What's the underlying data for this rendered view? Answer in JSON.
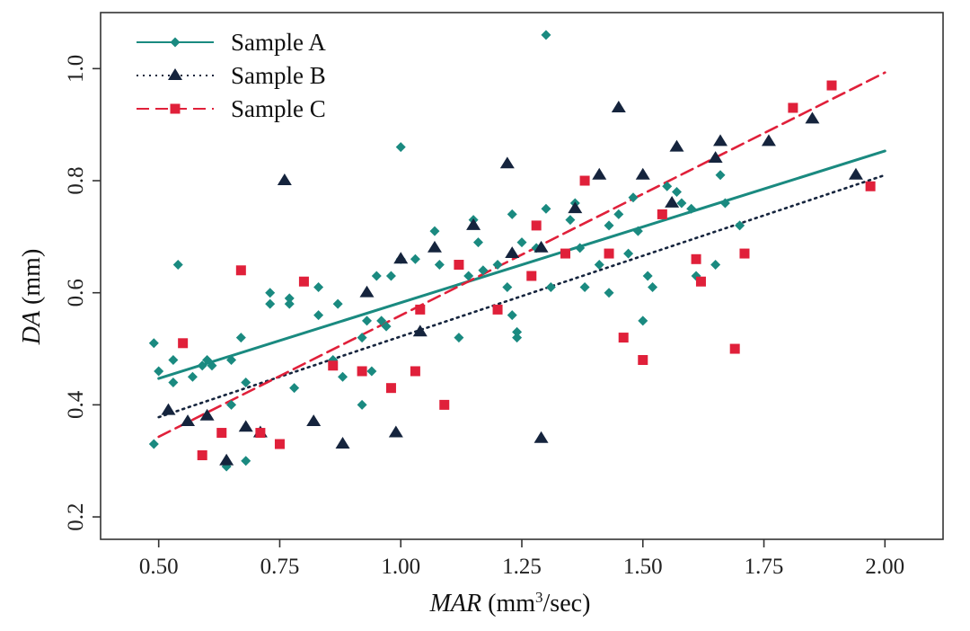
{
  "chart_data": {
    "type": "scatter",
    "xlabel": {
      "italic": "MAR",
      "rest": " (mm",
      "sup": "3",
      "tail": "/sec)"
    },
    "ylabel": {
      "italic": "DA",
      "rest": " (mm)"
    },
    "xlim": [
      0.38,
      2.12
    ],
    "ylim": [
      0.16,
      1.1
    ],
    "xticks": [
      0.5,
      0.75,
      1.0,
      1.25,
      1.5,
      1.75,
      2.0
    ],
    "xtick_labels": [
      "0.50",
      "0.75",
      "1.00",
      "1.25",
      "1.50",
      "1.75",
      "2.00"
    ],
    "yticks": [
      0.2,
      0.4,
      0.6,
      0.8,
      1.0
    ],
    "ytick_labels": [
      "0.2",
      "0.4",
      "0.6",
      "0.8",
      "1.0"
    ],
    "legend_position": "top-left",
    "grid": false,
    "series": [
      {
        "name": "Sample A",
        "color": "#1a8a80",
        "marker": "diamond",
        "line_style": "solid",
        "trend": [
          [
            0.5,
            0.447
          ],
          [
            2.0,
            0.853
          ]
        ],
        "points": [
          [
            0.49,
            0.51
          ],
          [
            0.5,
            0.46
          ],
          [
            0.49,
            0.33
          ],
          [
            0.53,
            0.48
          ],
          [
            0.53,
            0.44
          ],
          [
            0.54,
            0.65
          ],
          [
            0.57,
            0.45
          ],
          [
            0.59,
            0.47
          ],
          [
            0.6,
            0.48
          ],
          [
            0.61,
            0.47
          ],
          [
            0.64,
            0.29
          ],
          [
            0.65,
            0.4
          ],
          [
            0.65,
            0.48
          ],
          [
            0.67,
            0.52
          ],
          [
            0.68,
            0.44
          ],
          [
            0.68,
            0.3
          ],
          [
            0.73,
            0.6
          ],
          [
            0.73,
            0.58
          ],
          [
            0.77,
            0.59
          ],
          [
            0.77,
            0.58
          ],
          [
            0.78,
            0.43
          ],
          [
            0.83,
            0.61
          ],
          [
            0.83,
            0.56
          ],
          [
            0.86,
            0.48
          ],
          [
            0.87,
            0.58
          ],
          [
            0.88,
            0.45
          ],
          [
            0.92,
            0.52
          ],
          [
            0.92,
            0.4
          ],
          [
            0.93,
            0.55
          ],
          [
            0.94,
            0.46
          ],
          [
            0.95,
            0.63
          ],
          [
            0.96,
            0.55
          ],
          [
            0.97,
            0.54
          ],
          [
            0.98,
            0.63
          ],
          [
            1.0,
            0.66
          ],
          [
            1.0,
            0.86
          ],
          [
            1.03,
            0.66
          ],
          [
            1.07,
            0.71
          ],
          [
            1.08,
            0.65
          ],
          [
            1.12,
            0.65
          ],
          [
            1.12,
            0.52
          ],
          [
            1.14,
            0.63
          ],
          [
            1.15,
            0.73
          ],
          [
            1.16,
            0.69
          ],
          [
            1.17,
            0.64
          ],
          [
            1.2,
            0.65
          ],
          [
            1.22,
            0.61
          ],
          [
            1.23,
            0.74
          ],
          [
            1.23,
            0.56
          ],
          [
            1.24,
            0.52
          ],
          [
            1.24,
            0.53
          ],
          [
            1.25,
            0.69
          ],
          [
            1.28,
            0.68
          ],
          [
            1.3,
            0.75
          ],
          [
            1.3,
            1.06
          ],
          [
            1.31,
            0.61
          ],
          [
            1.35,
            0.73
          ],
          [
            1.36,
            0.76
          ],
          [
            1.37,
            0.68
          ],
          [
            1.38,
            0.61
          ],
          [
            1.41,
            0.65
          ],
          [
            1.43,
            0.72
          ],
          [
            1.43,
            0.6
          ],
          [
            1.45,
            0.74
          ],
          [
            1.47,
            0.67
          ],
          [
            1.48,
            0.77
          ],
          [
            1.49,
            0.71
          ],
          [
            1.5,
            0.55
          ],
          [
            1.51,
            0.63
          ],
          [
            1.52,
            0.61
          ],
          [
            1.55,
            0.79
          ],
          [
            1.57,
            0.78
          ],
          [
            1.58,
            0.76
          ],
          [
            1.6,
            0.75
          ],
          [
            1.61,
            0.63
          ],
          [
            1.65,
            0.65
          ],
          [
            1.66,
            0.81
          ],
          [
            1.67,
            0.76
          ],
          [
            1.7,
            0.72
          ],
          [
            1.71,
            0.67
          ]
        ]
      },
      {
        "name": "Sample B",
        "color": "#15243d",
        "marker": "triangle",
        "line_style": "dotted",
        "trend": [
          [
            0.5,
            0.378
          ],
          [
            2.0,
            0.81
          ]
        ],
        "points": [
          [
            0.52,
            0.39
          ],
          [
            0.56,
            0.37
          ],
          [
            0.6,
            0.38
          ],
          [
            0.64,
            0.3
          ],
          [
            0.68,
            0.36
          ],
          [
            0.71,
            0.35
          ],
          [
            0.76,
            0.8
          ],
          [
            0.82,
            0.37
          ],
          [
            0.88,
            0.33
          ],
          [
            0.93,
            0.6
          ],
          [
            0.99,
            0.35
          ],
          [
            1.0,
            0.66
          ],
          [
            1.04,
            0.53
          ],
          [
            1.07,
            0.68
          ],
          [
            1.15,
            0.72
          ],
          [
            1.22,
            0.83
          ],
          [
            1.23,
            0.67
          ],
          [
            1.29,
            0.34
          ],
          [
            1.29,
            0.68
          ],
          [
            1.36,
            0.75
          ],
          [
            1.41,
            0.81
          ],
          [
            1.45,
            0.93
          ],
          [
            1.5,
            0.81
          ],
          [
            1.56,
            0.76
          ],
          [
            1.57,
            0.86
          ],
          [
            1.65,
            0.84
          ],
          [
            1.66,
            0.87
          ],
          [
            1.76,
            0.87
          ],
          [
            1.85,
            0.91
          ],
          [
            1.94,
            0.81
          ]
        ]
      },
      {
        "name": "Sample C",
        "color": "#e0203a",
        "marker": "square",
        "line_style": "dashed",
        "trend": [
          [
            0.5,
            0.343
          ],
          [
            2.0,
            0.993
          ]
        ],
        "points": [
          [
            0.55,
            0.51
          ],
          [
            0.59,
            0.31
          ],
          [
            0.63,
            0.35
          ],
          [
            0.67,
            0.64
          ],
          [
            0.71,
            0.35
          ],
          [
            0.75,
            0.33
          ],
          [
            0.8,
            0.62
          ],
          [
            0.86,
            0.47
          ],
          [
            0.92,
            0.46
          ],
          [
            0.98,
            0.43
          ],
          [
            1.03,
            0.46
          ],
          [
            1.04,
            0.57
          ],
          [
            1.09,
            0.4
          ],
          [
            1.12,
            0.65
          ],
          [
            1.2,
            0.57
          ],
          [
            1.27,
            0.63
          ],
          [
            1.28,
            0.72
          ],
          [
            1.34,
            0.67
          ],
          [
            1.38,
            0.8
          ],
          [
            1.43,
            0.67
          ],
          [
            1.46,
            0.52
          ],
          [
            1.5,
            0.48
          ],
          [
            1.54,
            0.74
          ],
          [
            1.61,
            0.66
          ],
          [
            1.62,
            0.62
          ],
          [
            1.69,
            0.5
          ],
          [
            1.71,
            0.67
          ],
          [
            1.81,
            0.93
          ],
          [
            1.89,
            0.97
          ],
          [
            1.97,
            0.79
          ]
        ]
      }
    ]
  }
}
